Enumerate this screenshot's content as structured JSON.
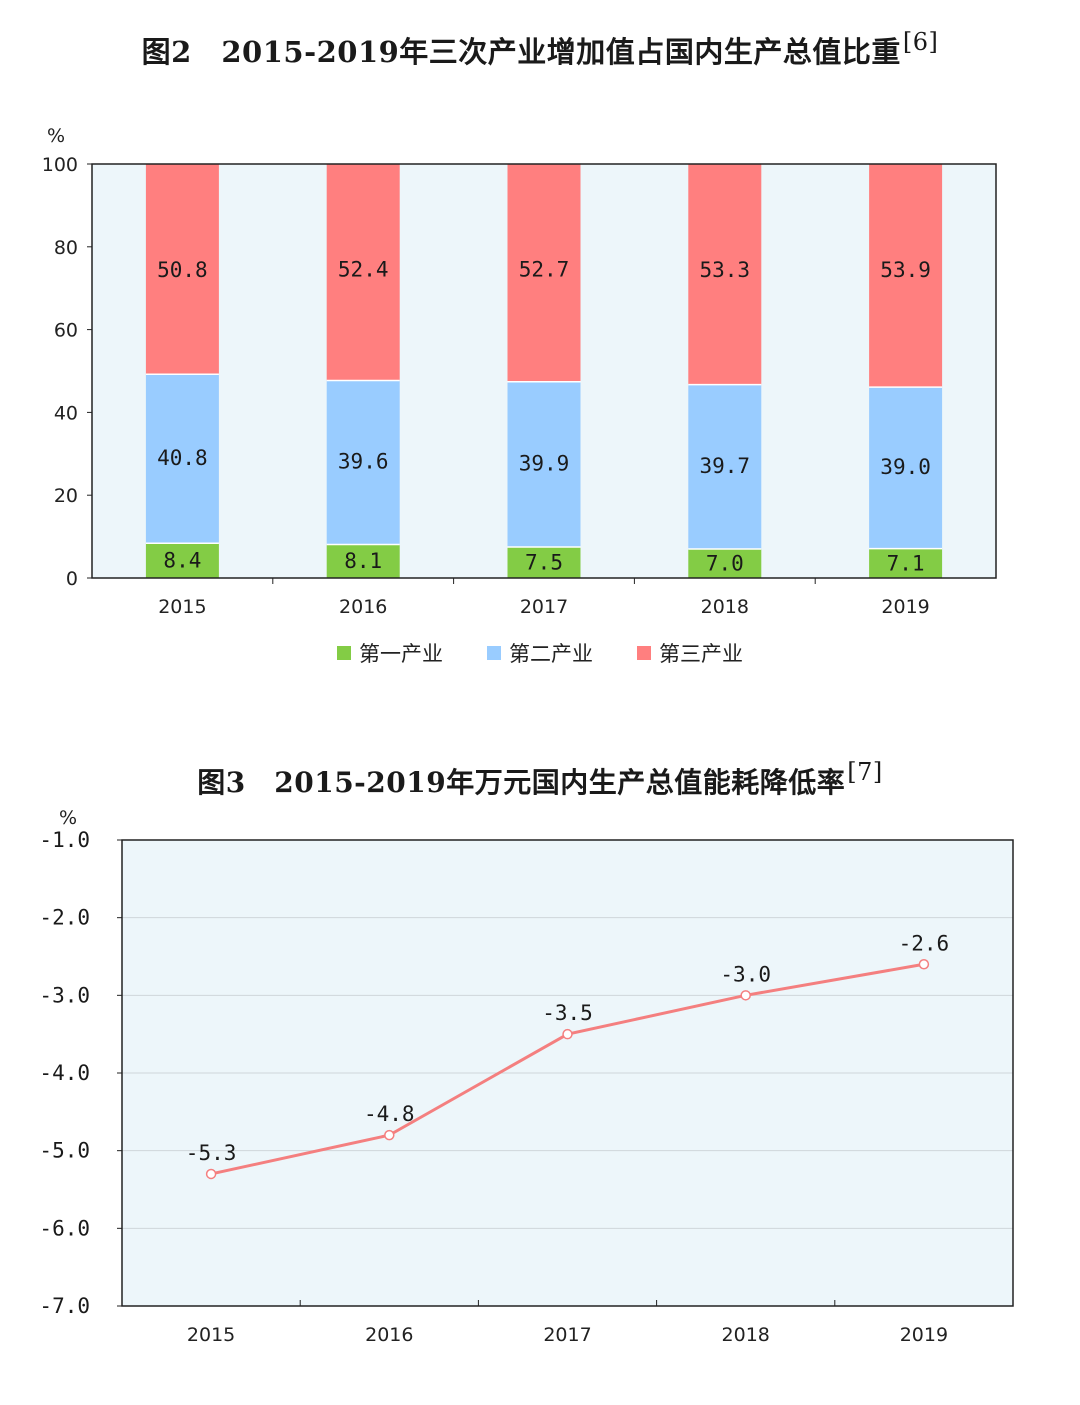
{
  "charts": {
    "fig2": {
      "title": "图2　2015-2019年三次产业增加值占国内生产总值比重",
      "ref": "[6]",
      "unit_label": "%"
    },
    "fig3": {
      "title": "图3　2015-2019年万元国内生产总值能耗降低率",
      "ref": "[7]",
      "unit_label": "%"
    }
  },
  "colors": {
    "primary": "#83cc45",
    "secondary": "#99ccff",
    "tertiary": "#ff7f7f",
    "line": "#f47f7f",
    "plot_bg": "#edf6fa"
  },
  "chart_data": [
    {
      "type": "bar",
      "stacked": true,
      "title": "图2　2015-2019年三次产业增加值占国内生产总值比重",
      "categories": [
        "2015",
        "2016",
        "2017",
        "2018",
        "2019"
      ],
      "series": [
        {
          "name": "第一产业",
          "values": [
            8.4,
            8.1,
            7.5,
            7.0,
            7.1
          ],
          "labels": [
            "8.4",
            "8.1",
            "7.5",
            "7.0",
            "7.1"
          ]
        },
        {
          "name": "第二产业",
          "values": [
            40.8,
            39.6,
            39.9,
            39.7,
            39.0
          ],
          "labels": [
            "40.8",
            "39.6",
            "39.9",
            "39.7",
            "39.0"
          ]
        },
        {
          "name": "第三产业",
          "values": [
            50.8,
            52.4,
            52.7,
            53.3,
            53.9
          ],
          "labels": [
            "50.8",
            "52.4",
            "52.7",
            "53.3",
            "53.9"
          ]
        }
      ],
      "ylabel": "%",
      "ylim": [
        0,
        100
      ],
      "yticks": [
        0,
        20,
        40,
        60,
        80,
        100
      ],
      "ytick_labels": [
        "0",
        "20",
        "40",
        "60",
        "80",
        "100"
      ],
      "legend": "bottom",
      "grid": false
    },
    {
      "type": "line",
      "title": "图3　2015-2019年万元国内生产总值能耗降低率",
      "categories": [
        "2015",
        "2016",
        "2017",
        "2018",
        "2019"
      ],
      "values": [
        -5.3,
        -4.8,
        -3.5,
        -3.0,
        -2.6
      ],
      "labels": [
        "-5.3",
        "-4.8",
        "-3.5",
        "-3.0",
        "-2.6"
      ],
      "ylabel": "%",
      "ylim": [
        -7.0,
        -1.0
      ],
      "yticks": [
        -7,
        -6,
        -5,
        -4,
        -3,
        -2,
        -1
      ],
      "ytick_labels": [
        "-7.0",
        "-6.0",
        "-5.0",
        "-4.0",
        "-3.0",
        "-2.0",
        "-1.0"
      ],
      "legend": "none",
      "grid": true
    }
  ]
}
